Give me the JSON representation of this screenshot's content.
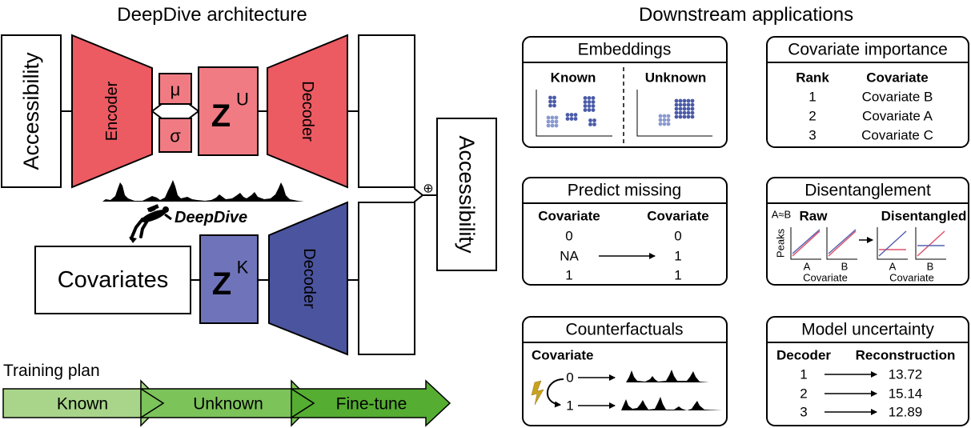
{
  "architecture": {
    "title": "DeepDive architecture",
    "input_label": "Accessibility",
    "encoder_label": "Encoder",
    "mu": "μ",
    "sigma": "σ",
    "zu_main": "Z",
    "zu_sup": "U",
    "decoder_top_label": "Decoder",
    "output_label": "Accessibility",
    "plus_symbol": "⊕",
    "logo_text": "DeepDive",
    "covariates_label": "Covariates",
    "zk_main": "Z",
    "zk_sup": "K",
    "decoder_bottom_label": "Decoder"
  },
  "training": {
    "title": "Training plan",
    "steps": [
      "Known",
      "Unknown",
      "Fine-tune"
    ]
  },
  "downstream": {
    "title": "Downstream applications",
    "embeddings": {
      "title": "Embeddings",
      "known": "Known",
      "unknown": "Unknown"
    },
    "importance": {
      "title": "Covariate importance",
      "headers": [
        "Rank",
        "Covariate"
      ],
      "rows": [
        [
          "1",
          "Covariate B"
        ],
        [
          "2",
          "Covariate A"
        ],
        [
          "3",
          "Covariate C"
        ]
      ]
    },
    "predict": {
      "title": "Predict missing",
      "headers": [
        "Covariate",
        "Covariate"
      ],
      "rows": [
        [
          "0",
          "0"
        ],
        [
          "NA",
          "1"
        ],
        [
          "1",
          "1"
        ]
      ]
    },
    "disentangle": {
      "title": "Disentanglement",
      "ab_label": "A≈B",
      "raw": "Raw",
      "disentangled": "Disentangled",
      "peaks": "Peaks",
      "a": "A",
      "b": "B",
      "covariate": "Covariate"
    },
    "counterfactuals": {
      "title": "Counterfactuals",
      "covariate": "Covariate",
      "v0": "0",
      "v1": "1"
    },
    "uncertainty": {
      "title": "Model uncertainty",
      "headers": [
        "Decoder",
        "Reconstruction"
      ],
      "rows": [
        [
          "1",
          "13.72"
        ],
        [
          "2",
          "15.14"
        ],
        [
          "3",
          "12.89"
        ]
      ]
    }
  },
  "colors": {
    "encoder_red": "#ec5a62",
    "z_pink": "#f07b82",
    "decoder_blue": "#4b549e",
    "zk_blue": "#6f74ba",
    "train_green_light": "#a8d58a",
    "train_green_mid": "#7cc35a",
    "train_green_dark": "#55ad32",
    "dot_blue": "#4a5aa8",
    "dot_light": "#8a9ad0",
    "line_red": "#e0506a",
    "line_blue": "#5560b0"
  }
}
